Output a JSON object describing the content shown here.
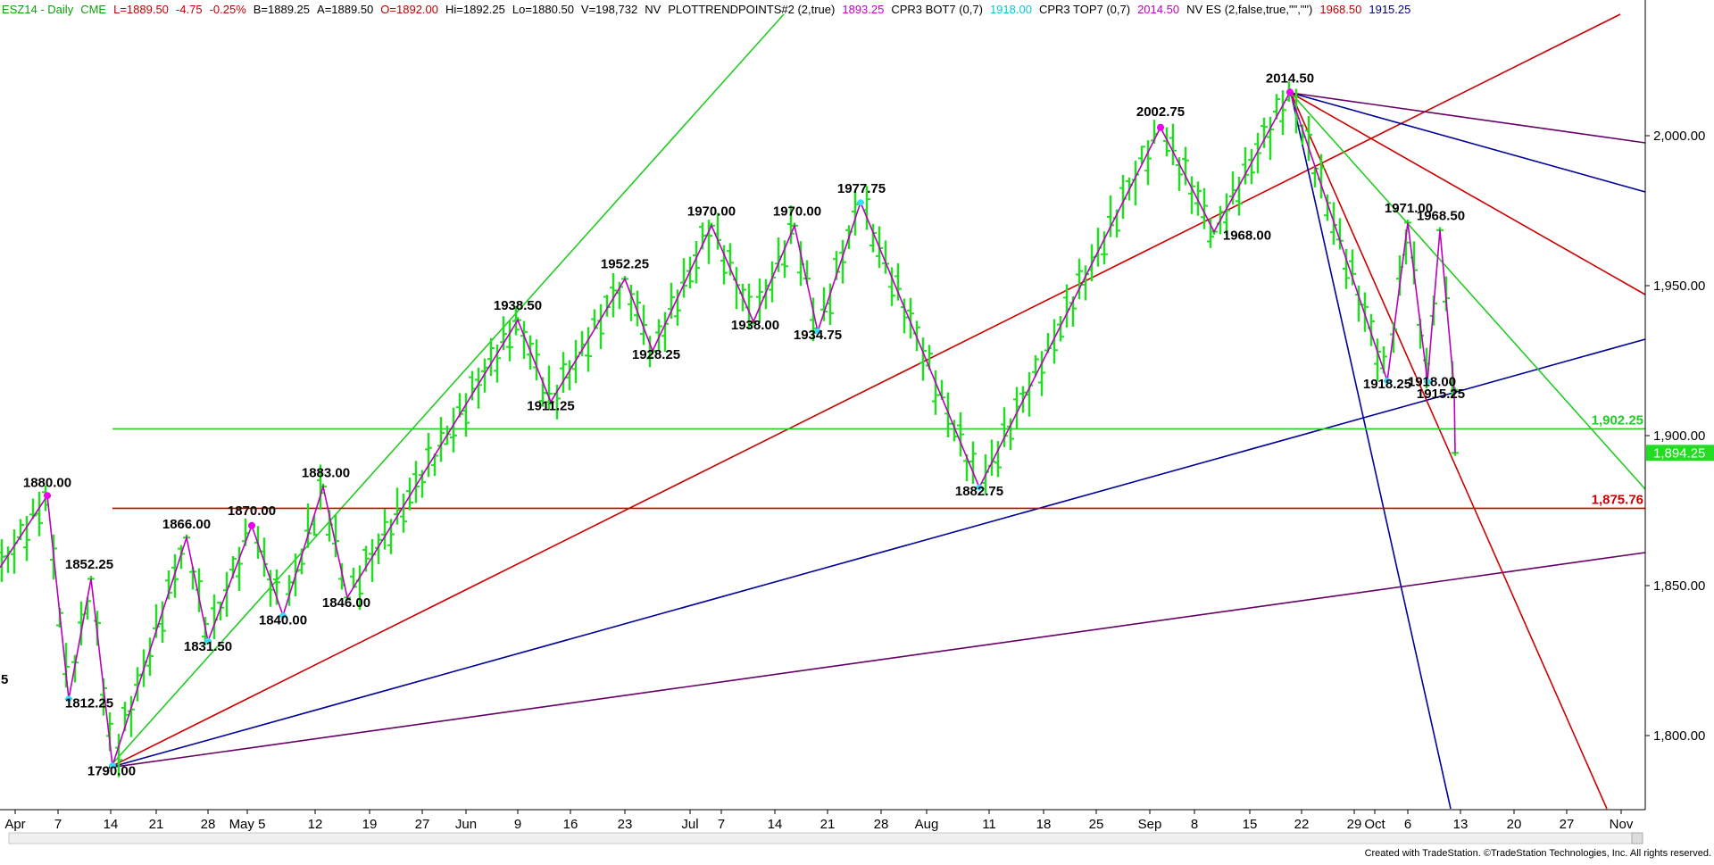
{
  "header": {
    "segments": [
      {
        "text": "ESZ14 - Daily",
        "color": "#0aa00a"
      },
      {
        "text": "CME",
        "color": "#0aa00a"
      },
      {
        "text": "L=1889.50",
        "color": "#c00000"
      },
      {
        "text": "-4.75",
        "color": "#c00000"
      },
      {
        "text": "-0.25%",
        "color": "#c00000"
      },
      {
        "text": "B=1889.25",
        "color": "#000000"
      },
      {
        "text": "A=1889.50",
        "color": "#000000"
      },
      {
        "text": "O=1892.00",
        "color": "#c00000"
      },
      {
        "text": "Hi=1892.25",
        "color": "#000000"
      },
      {
        "text": "Lo=1880.50",
        "color": "#000000"
      },
      {
        "text": "V=198,732",
        "color": "#000000"
      },
      {
        "text": "NV",
        "color": "#000000"
      },
      {
        "text": "PLOTTRENDPOINTS#2 (2,true)",
        "color": "#000000"
      },
      {
        "text": "1893.25",
        "color": "#c000c0"
      },
      {
        "text": "CPR3 BOT7 (0,7)",
        "color": "#000000"
      },
      {
        "text": "1918.00",
        "color": "#00c8e0"
      },
      {
        "text": "CPR3 TOP7 (0,7)",
        "color": "#000000"
      },
      {
        "text": "2014.50",
        "color": "#c000c0"
      },
      {
        "text": "NV ES (2,false,true,\"\",\"\")",
        "color": "#000000"
      },
      {
        "text": "1968.50",
        "color": "#c00000"
      },
      {
        "text": "1915.25",
        "color": "#000080"
      }
    ]
  },
  "colors": {
    "bars": "#22dd22",
    "swing": "#bb00bb",
    "green_line": "#22cc22",
    "red_line": "#cc0000",
    "blue_line": "#000099",
    "purple_line": "#660066",
    "high_dot": "#ee00ee",
    "low_dot": "#33ddff"
  },
  "chart_data": {
    "type": "bar",
    "subtype": "ohlc-daily",
    "symbol": "ESZ14",
    "timeframe": "Daily",
    "ylim": [
      1775,
      2045
    ],
    "y_ticks": [
      "1,800.00",
      "1,850.00",
      "1,900.00",
      "1,950.00",
      "2,000.00"
    ],
    "x_ticks": [
      "Apr",
      "7",
      "14",
      "21",
      "28",
      "May 5",
      "12",
      "19",
      "27",
      "Jun",
      "9",
      "16",
      "23",
      "Jul",
      "7",
      "14",
      "21",
      "28",
      "Aug",
      "11",
      "18",
      "25",
      "Sep",
      "8",
      "15",
      "22",
      "29",
      "Oct",
      "6",
      "13",
      "20",
      "27",
      "Nov"
    ],
    "swing_points": [
      {
        "label": "1880.00",
        "value": 1880.0,
        "kind": "high"
      },
      {
        "label": "1812.25",
        "value": 1812.25,
        "kind": "low"
      },
      {
        "label": "1852.25",
        "value": 1852.25,
        "kind": "high"
      },
      {
        "label": "1790.00",
        "value": 1790.0,
        "kind": "low"
      },
      {
        "label": "1866.00",
        "value": 1866.0,
        "kind": "high"
      },
      {
        "label": "1831.50",
        "value": 1831.5,
        "kind": "low"
      },
      {
        "label": "1870.00",
        "value": 1870.0,
        "kind": "high"
      },
      {
        "label": "1840.00",
        "value": 1840.0,
        "kind": "low"
      },
      {
        "label": "1883.00",
        "value": 1883.0,
        "kind": "high"
      },
      {
        "label": "1846.00",
        "value": 1846.0,
        "kind": "low"
      },
      {
        "label": "1938.50",
        "value": 1938.5,
        "kind": "high"
      },
      {
        "label": "1911.25",
        "value": 1911.25,
        "kind": "low"
      },
      {
        "label": "1952.25",
        "value": 1952.25,
        "kind": "high"
      },
      {
        "label": "1928.25",
        "value": 1928.25,
        "kind": "low"
      },
      {
        "label": "1970.00",
        "value": 1970.0,
        "kind": "high"
      },
      {
        "label": "1938.00",
        "value": 1938.0,
        "kind": "low"
      },
      {
        "label": "1970.00",
        "value": 1970.0,
        "kind": "high"
      },
      {
        "label": "1934.75",
        "value": 1934.75,
        "kind": "low"
      },
      {
        "label": "1977.75",
        "value": 1977.75,
        "kind": "high"
      },
      {
        "label": "1882.75",
        "value": 1882.75,
        "kind": "low"
      },
      {
        "label": "2002.75",
        "value": 2002.75,
        "kind": "high"
      },
      {
        "label": "1968.00",
        "value": 1968.0,
        "kind": "low"
      },
      {
        "label": "2014.50",
        "value": 2014.5,
        "kind": "high"
      },
      {
        "label": "1918.25",
        "value": 1918.25,
        "kind": "low"
      },
      {
        "label": "1971.00",
        "value": 1971.0,
        "kind": "high"
      },
      {
        "label": "1918.00",
        "value": 1918.0,
        "kind": "low"
      },
      {
        "label": "1968.50",
        "value": 1968.5,
        "kind": "high"
      },
      {
        "label": "1915.25",
        "value": 1915.25,
        "kind": "low"
      }
    ],
    "horizontal_levels": [
      {
        "label": "1,902.25",
        "value": 1902.25,
        "color": "#22cc22"
      },
      {
        "label": "1,875.76",
        "value": 1875.76,
        "color": "#cc0000"
      }
    ],
    "last_price": {
      "label": "1,894.25",
      "value": 1894.25
    },
    "edge_label": "5"
  },
  "footer": "Created with TradeStation. ©TradeStation Technologies, Inc. All rights reserved."
}
